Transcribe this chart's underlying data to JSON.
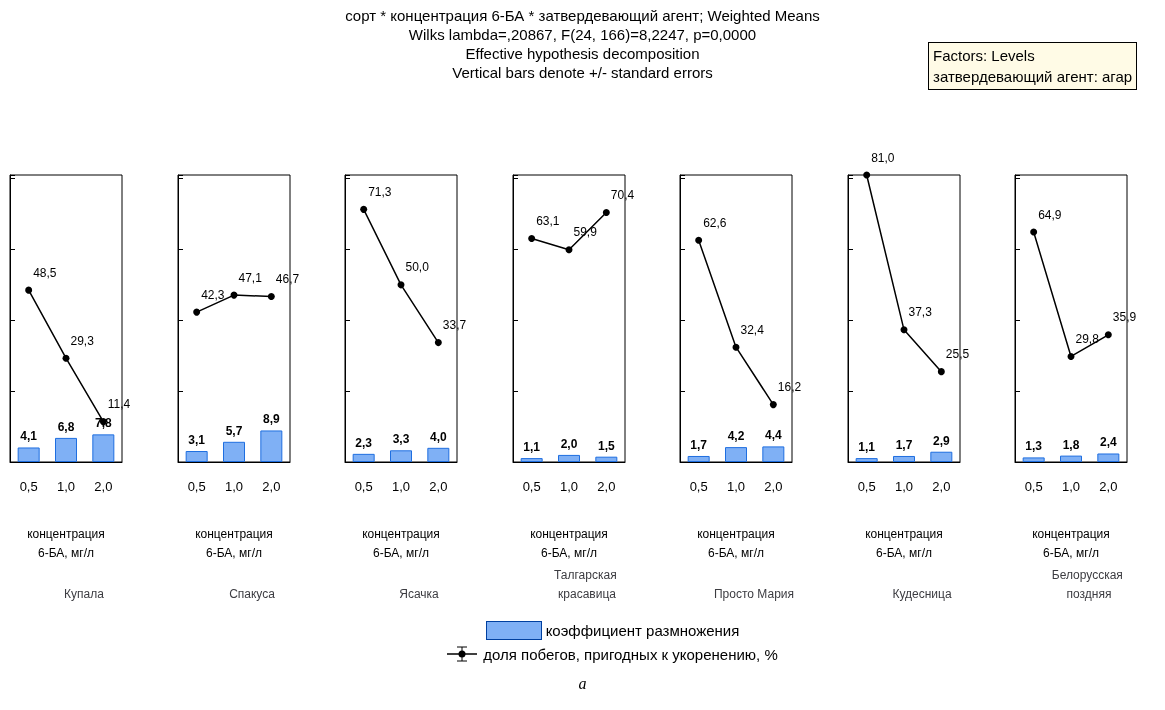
{
  "chart_data": [
    {
      "type": "other",
      "title": "сорт * концентрация 6-БА * затвердевающий агент; Weighted Means",
      "subtitle": "Wilks lambda=,20867, F(24, 166)=8,2247, p=0,0000\nEffective hypothesis decomposition\nVertical bars denote +/- standard errors",
      "annotations": [
        "Factors: Levels\nзатвердевающий агент: агар",
        "a"
      ]
    },
    {
      "type": "bar",
      "title": "Купала",
      "xlabel": "концентрация\n6-БА, мг/л",
      "categories": [
        "0,5",
        "1,0",
        "2,0"
      ],
      "tick_labels": "x",
      "legend": "bottom",
      "series": [
        {
          "name": "коэффициент размножения",
          "type": "bar",
          "color": "#7fb0f5",
          "values": [
            4.1,
            6.8,
            7.8
          ],
          "value_labels": [
            "4,1",
            "6,8",
            "7,8"
          ]
        },
        {
          "name": "доля побегов, пригодных к укоренению, %",
          "type": "line",
          "color": "#000000",
          "marker": "circle",
          "values": [
            48.5,
            29.3,
            11.4
          ],
          "value_labels": [
            "48,5",
            "29,3",
            "11,4"
          ]
        }
      ]
    },
    {
      "type": "bar",
      "title": "Спакуса",
      "xlabel": "концентрация\n6-БА, мг/л",
      "categories": [
        "0,5",
        "1,0",
        "2,0"
      ],
      "tick_labels": "x",
      "series": [
        {
          "type": "bar",
          "color": "#7fb0f5",
          "values": [
            3.1,
            5.7,
            8.9
          ],
          "value_labels": [
            "3,1",
            "5,7",
            "8,9"
          ]
        },
        {
          "type": "line",
          "color": "#000000",
          "marker": "circle",
          "values": [
            42.3,
            47.1,
            46.7
          ],
          "value_labels": [
            "42,3",
            "47,1",
            "46,7"
          ]
        }
      ]
    },
    {
      "type": "bar",
      "title": "Ясачка",
      "xlabel": "концентрация\n6-БА, мг/л",
      "categories": [
        "0,5",
        "1,0",
        "2,0"
      ],
      "tick_labels": "x",
      "series": [
        {
          "type": "bar",
          "color": "#7fb0f5",
          "values": [
            2.3,
            3.3,
            4.0
          ],
          "value_labels": [
            "2,3",
            "3,3",
            "4,0"
          ]
        },
        {
          "type": "line",
          "color": "#000000",
          "marker": "circle",
          "values": [
            71.3,
            50.0,
            33.7
          ],
          "value_labels": [
            "71,3",
            "50,0",
            "33,7"
          ]
        }
      ]
    },
    {
      "type": "bar",
      "title": "Талгарская красавица",
      "xlabel": "концентрация\n6-БА, мг/л",
      "categories": [
        "0,5",
        "1,0",
        "2,0"
      ],
      "tick_labels": "x",
      "series": [
        {
          "type": "bar",
          "color": "#7fb0f5",
          "values": [
            1.1,
            2.0,
            1.5
          ],
          "value_labels": [
            "1,1",
            "2,0",
            "1,5"
          ]
        },
        {
          "type": "line",
          "color": "#000000",
          "marker": "circle",
          "values": [
            63.1,
            59.9,
            70.4
          ],
          "value_labels": [
            "63,1",
            "59,9",
            "70,4"
          ]
        }
      ]
    },
    {
      "type": "bar",
      "title": "Просто Мария",
      "xlabel": "концентрация\n6-БА, мг/л",
      "categories": [
        "0,5",
        "1,0",
        "2,0"
      ],
      "tick_labels": "x",
      "series": [
        {
          "type": "bar",
          "color": "#7fb0f5",
          "values": [
            1.7,
            4.2,
            4.4
          ],
          "value_labels": [
            "1,7",
            "4,2",
            "4,4"
          ]
        },
        {
          "type": "line",
          "color": "#000000",
          "marker": "circle",
          "values": [
            62.6,
            32.4,
            16.2
          ],
          "value_labels": [
            "62,6",
            "32,4",
            "16,2"
          ]
        }
      ]
    },
    {
      "type": "bar",
      "title": "Кудесница",
      "xlabel": "концентрация\n6-БА, мг/л",
      "categories": [
        "0,5",
        "1,0",
        "2,0"
      ],
      "tick_labels": "x",
      "series": [
        {
          "type": "bar",
          "color": "#7fb0f5",
          "values": [
            1.1,
            1.7,
            2.9
          ],
          "value_labels": [
            "1,1",
            "1,7",
            "2,9"
          ]
        },
        {
          "type": "line",
          "color": "#000000",
          "marker": "circle",
          "values": [
            81.0,
            37.3,
            25.5
          ],
          "value_labels": [
            "81,0",
            "37,3",
            "25,5"
          ]
        }
      ]
    },
    {
      "type": "bar",
      "title": "Белорусская поздняя",
      "xlabel": "концентрация\n6-БА, мг/л",
      "categories": [
        "0,5",
        "1,0",
        "2,0"
      ],
      "tick_labels": "x",
      "series": [
        {
          "type": "bar",
          "color": "#7fb0f5",
          "values": [
            1.3,
            1.8,
            2.4
          ],
          "value_labels": [
            "1,3",
            "1,8",
            "2,4"
          ]
        },
        {
          "type": "line",
          "color": "#000000",
          "marker": "circle",
          "values": [
            64.9,
            29.8,
            35.9
          ],
          "value_labels": [
            "64,9",
            "29,8",
            "35,9"
          ]
        }
      ]
    }
  ]
}
